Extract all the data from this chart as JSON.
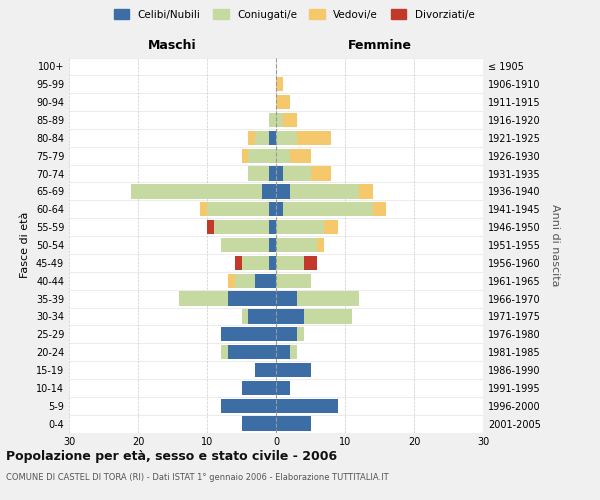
{
  "age_groups": [
    "0-4",
    "5-9",
    "10-14",
    "15-19",
    "20-24",
    "25-29",
    "30-34",
    "35-39",
    "40-44",
    "45-49",
    "50-54",
    "55-59",
    "60-64",
    "65-69",
    "70-74",
    "75-79",
    "80-84",
    "85-89",
    "90-94",
    "95-99",
    "100+"
  ],
  "birth_years": [
    "2001-2005",
    "1996-2000",
    "1991-1995",
    "1986-1990",
    "1981-1985",
    "1976-1980",
    "1971-1975",
    "1966-1970",
    "1961-1965",
    "1956-1960",
    "1951-1955",
    "1946-1950",
    "1941-1945",
    "1936-1940",
    "1931-1935",
    "1926-1930",
    "1921-1925",
    "1916-1920",
    "1911-1915",
    "1906-1910",
    "≤ 1905"
  ],
  "maschi": {
    "celibi": [
      5,
      8,
      5,
      3,
      7,
      8,
      4,
      7,
      3,
      1,
      1,
      1,
      1,
      2,
      1,
      0,
      1,
      0,
      0,
      0,
      0
    ],
    "coniugati": [
      0,
      0,
      0,
      0,
      1,
      0,
      1,
      7,
      3,
      4,
      7,
      8,
      9,
      19,
      3,
      4,
      2,
      1,
      0,
      0,
      0
    ],
    "vedovi": [
      0,
      0,
      0,
      0,
      0,
      0,
      0,
      0,
      1,
      0,
      0,
      0,
      1,
      0,
      0,
      1,
      1,
      0,
      0,
      0,
      0
    ],
    "divorziati": [
      0,
      0,
      0,
      0,
      0,
      0,
      0,
      0,
      0,
      1,
      0,
      1,
      0,
      0,
      0,
      0,
      0,
      0,
      0,
      0,
      0
    ]
  },
  "femmine": {
    "nubili": [
      5,
      9,
      2,
      5,
      2,
      3,
      4,
      3,
      0,
      0,
      0,
      0,
      1,
      2,
      1,
      0,
      0,
      0,
      0,
      0,
      0
    ],
    "coniugate": [
      0,
      0,
      0,
      0,
      1,
      1,
      7,
      9,
      5,
      4,
      6,
      7,
      13,
      10,
      4,
      2,
      3,
      1,
      0,
      0,
      0
    ],
    "vedove": [
      0,
      0,
      0,
      0,
      0,
      0,
      0,
      0,
      0,
      0,
      1,
      2,
      2,
      2,
      3,
      3,
      5,
      2,
      2,
      1,
      0
    ],
    "divorziate": [
      0,
      0,
      0,
      0,
      0,
      0,
      0,
      0,
      0,
      2,
      0,
      0,
      0,
      0,
      0,
      0,
      0,
      0,
      0,
      0,
      0
    ]
  },
  "colors": {
    "celibi": "#3c6ea5",
    "coniugati": "#c5d9a0",
    "vedovi": "#f5c96b",
    "divorziati": "#c0392b"
  },
  "title": "Popolazione per età, sesso e stato civile - 2006",
  "subtitle": "COMUNE DI CASTEL DI TORA (RI) - Dati ISTAT 1° gennaio 2006 - Elaborazione TUTTITALIA.IT",
  "xlabel_left": "Maschi",
  "xlabel_right": "Femmine",
  "ylabel_left": "Fasce di età",
  "ylabel_right": "Anni di nascita",
  "xlim": 30,
  "legend_labels": [
    "Celibi/Nubili",
    "Coniugati/e",
    "Vedovi/e",
    "Divorziati/e"
  ],
  "bg_color": "#f0f0f0",
  "plot_bg_color": "#ffffff"
}
